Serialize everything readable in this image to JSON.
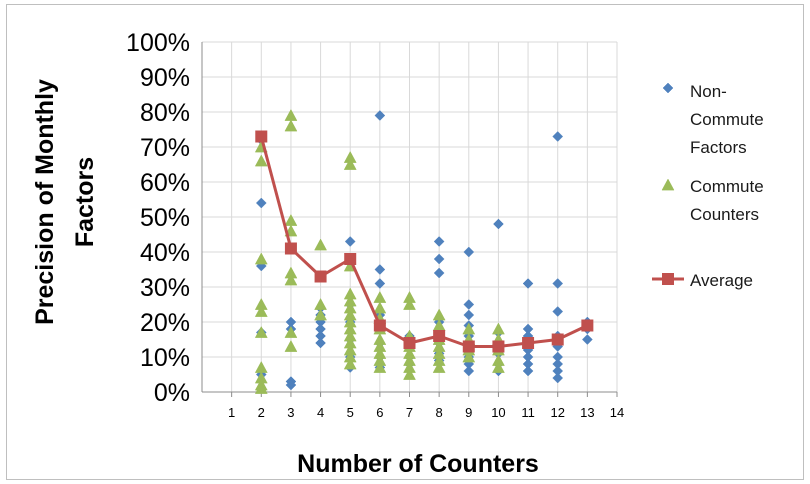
{
  "chart_data": {
    "type": "scatter",
    "title": "",
    "xlabel": "Number of Counters",
    "ylabel_lines": [
      "Precision of Monthly",
      "Factors"
    ],
    "xlim": [
      0,
      14
    ],
    "ylim": [
      0,
      100
    ],
    "x_ticks": [
      1,
      2,
      3,
      4,
      5,
      6,
      7,
      8,
      9,
      10,
      11,
      12,
      13,
      14
    ],
    "y_ticks": [
      "0%",
      "10%",
      "20%",
      "30%",
      "40%",
      "50%",
      "60%",
      "70%",
      "80%",
      "90%",
      "100%"
    ],
    "grid": true,
    "legend_position": "right",
    "series": [
      {
        "name": "Non-Commute Factors",
        "legend_lines": [
          "Non-",
          "Commute",
          "Factors"
        ],
        "kind": "diamond",
        "color": "#4f81bd",
        "points": [
          [
            2,
            72
          ],
          [
            2,
            54
          ],
          [
            2,
            36
          ],
          [
            2,
            17
          ],
          [
            2,
            5
          ],
          [
            3,
            20
          ],
          [
            3,
            18
          ],
          [
            3,
            3
          ],
          [
            3,
            2
          ],
          [
            4,
            24
          ],
          [
            4,
            22
          ],
          [
            4,
            20
          ],
          [
            4,
            18
          ],
          [
            4,
            16
          ],
          [
            4,
            14
          ],
          [
            5,
            43
          ],
          [
            5,
            25
          ],
          [
            5,
            20
          ],
          [
            5,
            15
          ],
          [
            5,
            10
          ],
          [
            5,
            7
          ],
          [
            6,
            79
          ],
          [
            6,
            35
          ],
          [
            6,
            31
          ],
          [
            6,
            22
          ],
          [
            6,
            18
          ],
          [
            6,
            14
          ],
          [
            6,
            10
          ],
          [
            6,
            7
          ],
          [
            7,
            16
          ],
          [
            7,
            13
          ],
          [
            7,
            10
          ],
          [
            7,
            8
          ],
          [
            8,
            43
          ],
          [
            8,
            38
          ],
          [
            8,
            34
          ],
          [
            8,
            20
          ],
          [
            8,
            17
          ],
          [
            8,
            14
          ],
          [
            8,
            11
          ],
          [
            8,
            9
          ],
          [
            9,
            40
          ],
          [
            9,
            25
          ],
          [
            9,
            22
          ],
          [
            9,
            19
          ],
          [
            9,
            16
          ],
          [
            9,
            13
          ],
          [
            9,
            10
          ],
          [
            9,
            8
          ],
          [
            9,
            6
          ],
          [
            10,
            48
          ],
          [
            10,
            17
          ],
          [
            10,
            14
          ],
          [
            10,
            11
          ],
          [
            10,
            8
          ],
          [
            10,
            6
          ],
          [
            11,
            31
          ],
          [
            11,
            18
          ],
          [
            11,
            16
          ],
          [
            11,
            14
          ],
          [
            11,
            12
          ],
          [
            11,
            10
          ],
          [
            11,
            8
          ],
          [
            11,
            6
          ],
          [
            12,
            73
          ],
          [
            12,
            31
          ],
          [
            12,
            23
          ],
          [
            12,
            16
          ],
          [
            12,
            13
          ],
          [
            12,
            10
          ],
          [
            12,
            8
          ],
          [
            12,
            6
          ],
          [
            12,
            4
          ],
          [
            13,
            20
          ],
          [
            13,
            18
          ],
          [
            13,
            15
          ]
        ]
      },
      {
        "name": "Commute Counters",
        "legend_lines": [
          "Commute",
          "Counters"
        ],
        "kind": "triangle",
        "color": "#9bbb59",
        "points": [
          [
            2,
            70
          ],
          [
            2,
            66
          ],
          [
            2,
            38
          ],
          [
            2,
            25
          ],
          [
            2,
            23
          ],
          [
            2,
            17
          ],
          [
            2,
            7
          ],
          [
            2,
            4
          ],
          [
            2,
            2
          ],
          [
            2,
            1
          ],
          [
            3,
            79
          ],
          [
            3,
            76
          ],
          [
            3,
            49
          ],
          [
            3,
            46
          ],
          [
            3,
            34
          ],
          [
            3,
            32
          ],
          [
            3,
            17
          ],
          [
            3,
            13
          ],
          [
            4,
            42
          ],
          [
            4,
            25
          ],
          [
            4,
            22
          ],
          [
            5,
            67
          ],
          [
            5,
            65
          ],
          [
            5,
            36
          ],
          [
            5,
            28
          ],
          [
            5,
            26
          ],
          [
            5,
            24
          ],
          [
            5,
            22
          ],
          [
            5,
            20
          ],
          [
            5,
            18
          ],
          [
            5,
            16
          ],
          [
            5,
            14
          ],
          [
            5,
            12
          ],
          [
            5,
            10
          ],
          [
            5,
            8
          ],
          [
            6,
            27
          ],
          [
            6,
            24
          ],
          [
            6,
            21
          ],
          [
            6,
            18
          ],
          [
            6,
            15
          ],
          [
            6,
            13
          ],
          [
            6,
            11
          ],
          [
            6,
            9
          ],
          [
            6,
            7
          ],
          [
            7,
            27
          ],
          [
            7,
            25
          ],
          [
            7,
            16
          ],
          [
            7,
            13
          ],
          [
            7,
            11
          ],
          [
            7,
            9
          ],
          [
            7,
            7
          ],
          [
            7,
            5
          ],
          [
            8,
            22
          ],
          [
            8,
            19
          ],
          [
            8,
            17
          ],
          [
            8,
            15
          ],
          [
            8,
            13
          ],
          [
            8,
            11
          ],
          [
            8,
            9
          ],
          [
            8,
            7
          ],
          [
            9,
            18
          ],
          [
            9,
            15
          ],
          [
            9,
            12
          ],
          [
            9,
            10
          ],
          [
            10,
            18
          ],
          [
            10,
            15
          ],
          [
            10,
            12
          ],
          [
            10,
            9
          ],
          [
            10,
            7
          ]
        ]
      },
      {
        "name": "Average",
        "kind": "line",
        "color": "#c0504d",
        "x": [
          2,
          3,
          4,
          5,
          6,
          7,
          8,
          9,
          10,
          11,
          12,
          13
        ],
        "values": [
          73,
          41,
          33,
          38,
          19,
          14,
          16,
          13,
          13,
          14,
          15,
          19
        ]
      }
    ]
  }
}
